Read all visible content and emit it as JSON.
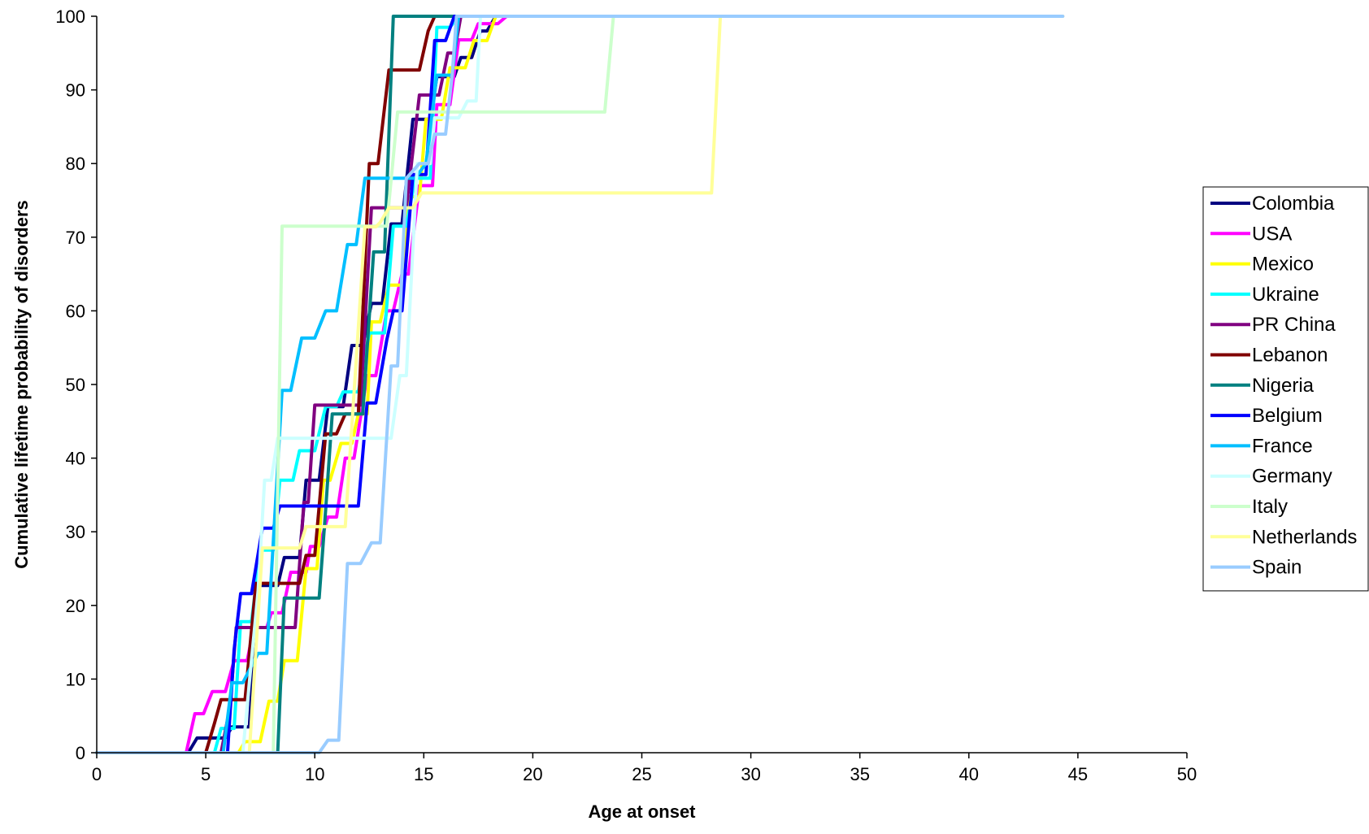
{
  "chart_data": {
    "type": "line",
    "title": "",
    "xlabel": "Age at onset",
    "ylabel": "Cumulative lifetime probability of disorders",
    "xlim": [
      0,
      50
    ],
    "ylim": [
      0,
      100
    ],
    "xticks": [
      0,
      5,
      10,
      15,
      20,
      25,
      30,
      35,
      40,
      45,
      50
    ],
    "yticks": [
      0,
      10,
      20,
      30,
      40,
      50,
      60,
      70,
      80,
      90,
      100
    ],
    "grid": false,
    "step": true,
    "legend_position": "right",
    "series": [
      {
        "name": "Colombia",
        "color": "#000080",
        "points": [
          [
            0,
            0
          ],
          [
            4.2,
            0
          ],
          [
            4.6,
            2
          ],
          [
            5.9,
            2
          ],
          [
            6.2,
            3.5
          ],
          [
            7.0,
            3.5
          ],
          [
            7.4,
            22.7
          ],
          [
            8.3,
            22.7
          ],
          [
            8.6,
            26.5
          ],
          [
            9.3,
            26.5
          ],
          [
            9.6,
            37
          ],
          [
            10.2,
            37
          ],
          [
            10.6,
            47
          ],
          [
            11.3,
            47
          ],
          [
            11.7,
            55.3
          ],
          [
            12.2,
            55.3
          ],
          [
            12.6,
            61
          ],
          [
            13.1,
            61
          ],
          [
            13.5,
            71.8
          ],
          [
            14.0,
            71.8
          ],
          [
            14.5,
            86
          ],
          [
            15.3,
            86
          ],
          [
            15.6,
            91.8
          ],
          [
            16.4,
            91.8
          ],
          [
            16.7,
            94.4
          ],
          [
            17.2,
            94.4
          ],
          [
            17.6,
            98
          ],
          [
            17.9,
            98
          ],
          [
            18.3,
            100
          ],
          [
            44.3,
            100
          ]
        ]
      },
      {
        "name": "USA",
        "color": "#FF00FF",
        "points": [
          [
            0,
            0
          ],
          [
            4.1,
            0
          ],
          [
            4.5,
            5.3
          ],
          [
            4.9,
            5.3
          ],
          [
            5.3,
            8.3
          ],
          [
            5.9,
            8.3
          ],
          [
            6.3,
            12.5
          ],
          [
            6.9,
            12.5
          ],
          [
            7.2,
            17
          ],
          [
            7.8,
            17
          ],
          [
            8.0,
            19
          ],
          [
            8.5,
            19
          ],
          [
            8.9,
            24.5
          ],
          [
            9.6,
            24.5
          ],
          [
            9.8,
            28
          ],
          [
            10.2,
            28
          ],
          [
            10.6,
            32
          ],
          [
            11.0,
            32
          ],
          [
            11.4,
            40
          ],
          [
            11.8,
            40
          ],
          [
            12.4,
            51.2
          ],
          [
            12.8,
            51.2
          ],
          [
            13.3,
            60
          ],
          [
            13.6,
            60
          ],
          [
            14.0,
            65
          ],
          [
            14.3,
            65
          ],
          [
            14.8,
            77
          ],
          [
            15.4,
            77
          ],
          [
            15.6,
            88
          ],
          [
            16.2,
            88
          ],
          [
            16.6,
            96.8
          ],
          [
            17.2,
            96.8
          ],
          [
            17.5,
            99
          ],
          [
            18.4,
            99
          ],
          [
            18.8,
            100
          ],
          [
            44.3,
            100
          ]
        ]
      },
      {
        "name": "Mexico",
        "color": "#FFFF00",
        "points": [
          [
            0,
            0
          ],
          [
            6.5,
            0
          ],
          [
            6.8,
            1.5
          ],
          [
            7.5,
            1.5
          ],
          [
            7.9,
            7
          ],
          [
            8.3,
            7
          ],
          [
            8.6,
            12.5
          ],
          [
            9.2,
            12.5
          ],
          [
            9.6,
            25
          ],
          [
            10.1,
            25
          ],
          [
            10.4,
            37
          ],
          [
            10.7,
            37
          ],
          [
            11.2,
            42
          ],
          [
            11.7,
            42
          ],
          [
            12.0,
            46
          ],
          [
            12.4,
            46
          ],
          [
            12.6,
            58.5
          ],
          [
            13.0,
            58.5
          ],
          [
            13.4,
            63.5
          ],
          [
            14.0,
            63.5
          ],
          [
            14.3,
            75.5
          ],
          [
            14.8,
            75.5
          ],
          [
            15.1,
            86
          ],
          [
            15.8,
            86
          ],
          [
            16.2,
            93
          ],
          [
            16.9,
            93
          ],
          [
            17.3,
            96.7
          ],
          [
            17.9,
            96.7
          ],
          [
            18.3,
            100
          ],
          [
            44.3,
            100
          ]
        ]
      },
      {
        "name": "Ukraine",
        "color": "#00FFFF",
        "points": [
          [
            0,
            0
          ],
          [
            5.4,
            0
          ],
          [
            5.7,
            3.3
          ],
          [
            6.3,
            3.3
          ],
          [
            6.6,
            17.8
          ],
          [
            7.1,
            17.8
          ],
          [
            7.5,
            27.5
          ],
          [
            8.1,
            27.5
          ],
          [
            8.4,
            37
          ],
          [
            9.0,
            37
          ],
          [
            9.3,
            41
          ],
          [
            9.7,
            41
          ],
          [
            10.0,
            41
          ],
          [
            10.5,
            47
          ],
          [
            11.0,
            47
          ],
          [
            11.3,
            49
          ],
          [
            12.0,
            49
          ],
          [
            12.5,
            57
          ],
          [
            13.2,
            57
          ],
          [
            13.6,
            71.5
          ],
          [
            14.2,
            71.5
          ],
          [
            14.6,
            78
          ],
          [
            15.3,
            78
          ],
          [
            15.6,
            98.5
          ],
          [
            16.2,
            98.5
          ],
          [
            16.6,
            100
          ],
          [
            44.3,
            100
          ]
        ]
      },
      {
        "name": "PR China",
        "color": "#800080",
        "points": [
          [
            0,
            0
          ],
          [
            5.7,
            0
          ],
          [
            6.1,
            6
          ],
          [
            6.4,
            17
          ],
          [
            7.6,
            17
          ],
          [
            8.1,
            17
          ],
          [
            9.1,
            17
          ],
          [
            9.5,
            34
          ],
          [
            9.7,
            34
          ],
          [
            10.0,
            47.2
          ],
          [
            11.3,
            47.2
          ],
          [
            11.8,
            47.2
          ],
          [
            12.1,
            47.2
          ],
          [
            12.6,
            74
          ],
          [
            13.0,
            74
          ],
          [
            13.4,
            74
          ],
          [
            14.2,
            74
          ],
          [
            14.8,
            89.3
          ],
          [
            15.7,
            89.3
          ],
          [
            16.1,
            95
          ],
          [
            16.4,
            95
          ],
          [
            16.7,
            100
          ],
          [
            44.3,
            100
          ]
        ]
      },
      {
        "name": "Lebanon",
        "color": "#800000",
        "points": [
          [
            0,
            0
          ],
          [
            5.0,
            0
          ],
          [
            5.4,
            4
          ],
          [
            5.7,
            7.2
          ],
          [
            6.8,
            7.2
          ],
          [
            7.3,
            23
          ],
          [
            8.0,
            23
          ],
          [
            8.6,
            23
          ],
          [
            9.3,
            23
          ],
          [
            9.6,
            26.8
          ],
          [
            10.0,
            26.8
          ],
          [
            10.5,
            43.3
          ],
          [
            11.0,
            43.3
          ],
          [
            11.4,
            46
          ],
          [
            12.0,
            46
          ],
          [
            12.5,
            80
          ],
          [
            12.9,
            80
          ],
          [
            13.4,
            92.7
          ],
          [
            14.8,
            92.7
          ],
          [
            15.2,
            98
          ],
          [
            15.5,
            100
          ],
          [
            44.3,
            100
          ]
        ]
      },
      {
        "name": "Nigeria",
        "color": "#008080",
        "points": [
          [
            0,
            0
          ],
          [
            8.3,
            0
          ],
          [
            8.6,
            21
          ],
          [
            10.2,
            21
          ],
          [
            10.5,
            33
          ],
          [
            10.8,
            46
          ],
          [
            12.2,
            46
          ],
          [
            12.7,
            68
          ],
          [
            13.2,
            68
          ],
          [
            13.6,
            100
          ],
          [
            44.3,
            100
          ]
        ]
      },
      {
        "name": "Belgium",
        "color": "#0000FF",
        "points": [
          [
            0,
            0
          ],
          [
            6.0,
            0
          ],
          [
            6.3,
            14
          ],
          [
            6.6,
            21.6
          ],
          [
            7.1,
            21.6
          ],
          [
            7.6,
            30.5
          ],
          [
            8.1,
            30.5
          ],
          [
            8.4,
            33.5
          ],
          [
            10.6,
            33.5
          ],
          [
            12.0,
            33.5
          ],
          [
            12.4,
            47.5
          ],
          [
            12.8,
            47.5
          ],
          [
            13.3,
            56
          ],
          [
            13.6,
            60
          ],
          [
            14.0,
            60
          ],
          [
            14.5,
            78.5
          ],
          [
            15.1,
            78.5
          ],
          [
            15.5,
            96.7
          ],
          [
            16.0,
            96.7
          ],
          [
            16.4,
            100
          ],
          [
            44.3,
            100
          ]
        ]
      },
      {
        "name": "France",
        "color": "#00BFFF",
        "points": [
          [
            0,
            0
          ],
          [
            5.8,
            0
          ],
          [
            6.2,
            9.5
          ],
          [
            6.7,
            9.5
          ],
          [
            7.4,
            13.5
          ],
          [
            7.8,
            13.5
          ],
          [
            8.5,
            49.2
          ],
          [
            8.9,
            49.2
          ],
          [
            9.4,
            56.3
          ],
          [
            10.0,
            56.3
          ],
          [
            10.5,
            60
          ],
          [
            11.0,
            60
          ],
          [
            11.5,
            69
          ],
          [
            11.9,
            69
          ],
          [
            12.3,
            78
          ],
          [
            14.0,
            78
          ],
          [
            14.6,
            78
          ],
          [
            15.1,
            80
          ],
          [
            15.6,
            92
          ],
          [
            16.3,
            92
          ],
          [
            16.6,
            100
          ],
          [
            44.3,
            100
          ]
        ]
      },
      {
        "name": "Germany",
        "color": "#CCFFFF",
        "points": [
          [
            0,
            0
          ],
          [
            6.7,
            0
          ],
          [
            7.0,
            9.5
          ],
          [
            7.4,
            22
          ],
          [
            7.7,
            37
          ],
          [
            8.0,
            37
          ],
          [
            8.3,
            42.7
          ],
          [
            13.5,
            42.7
          ],
          [
            13.9,
            51.2
          ],
          [
            14.2,
            51.2
          ],
          [
            14.7,
            80
          ],
          [
            15.3,
            80
          ],
          [
            15.5,
            86.2
          ],
          [
            16.6,
            86.2
          ],
          [
            17.0,
            88.5
          ],
          [
            17.4,
            88.5
          ],
          [
            17.6,
            100
          ],
          [
            44.3,
            100
          ]
        ]
      },
      {
        "name": "Italy",
        "color": "#CCFFCC",
        "points": [
          [
            0,
            0
          ],
          [
            8.1,
            0
          ],
          [
            8.5,
            71.5
          ],
          [
            13.3,
            71.5
          ],
          [
            13.8,
            87
          ],
          [
            23.3,
            87
          ],
          [
            23.7,
            100
          ],
          [
            44.3,
            100
          ]
        ]
      },
      {
        "name": "Netherlands",
        "color": "#FFFF99",
        "points": [
          [
            0,
            0
          ],
          [
            7.0,
            0
          ],
          [
            7.6,
            27.8
          ],
          [
            9.3,
            27.8
          ],
          [
            9.6,
            30.7
          ],
          [
            11.4,
            30.7
          ],
          [
            12.3,
            71.4
          ],
          [
            12.8,
            71.4
          ],
          [
            13.0,
            72
          ],
          [
            13.4,
            74
          ],
          [
            14.5,
            74
          ],
          [
            14.9,
            76
          ],
          [
            28.2,
            76
          ],
          [
            28.6,
            100
          ],
          [
            44.3,
            100
          ]
        ]
      },
      {
        "name": "Spain",
        "color": "#99CCFF",
        "points": [
          [
            0,
            0
          ],
          [
            10.2,
            0
          ],
          [
            10.6,
            1.7
          ],
          [
            11.1,
            1.7
          ],
          [
            11.5,
            25.7
          ],
          [
            12.1,
            25.7
          ],
          [
            12.6,
            28.5
          ],
          [
            13.0,
            28.5
          ],
          [
            13.5,
            52.5
          ],
          [
            13.8,
            52.5
          ],
          [
            14.2,
            78
          ],
          [
            14.8,
            80
          ],
          [
            15.2,
            80
          ],
          [
            15.5,
            84
          ],
          [
            16.0,
            84
          ],
          [
            16.3,
            92
          ],
          [
            16.5,
            100
          ],
          [
            44.3,
            100
          ]
        ]
      }
    ]
  }
}
